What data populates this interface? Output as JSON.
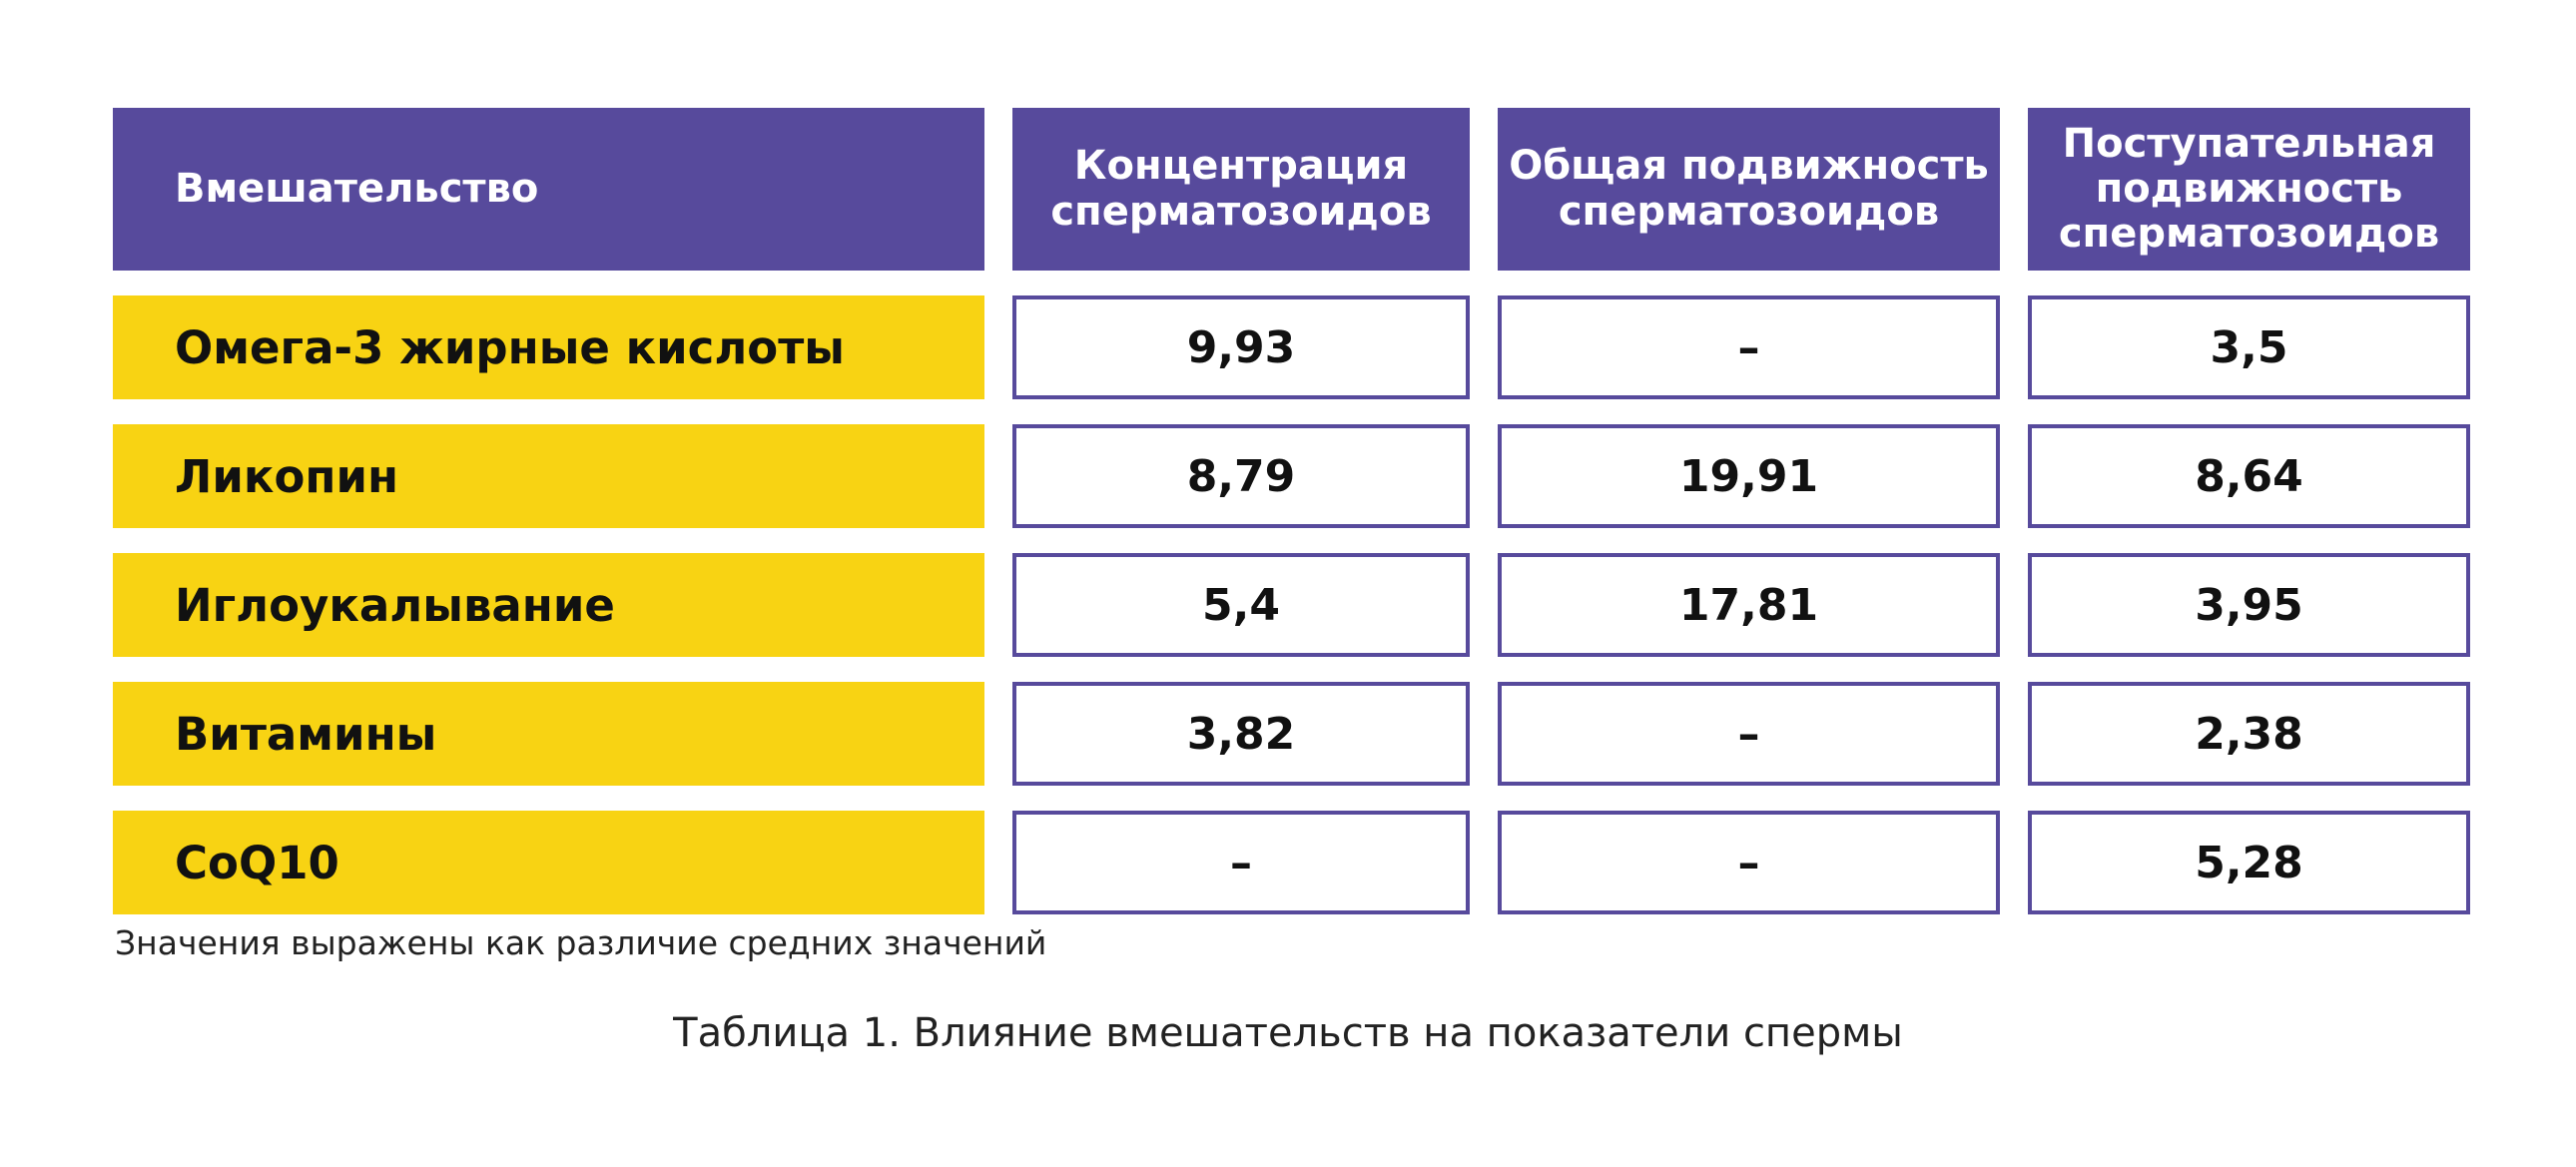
{
  "table": {
    "headers": [
      "Вмешательство",
      "Концентрация сперматозоидов",
      "Общая подвижность сперматозоидов",
      "Поступательная подвижность сперматозоидов"
    ],
    "rows": [
      {
        "label": "Омега-3 жирные кислоты",
        "values": [
          "9,93",
          "–",
          "3,5"
        ]
      },
      {
        "label": "Ликопин",
        "values": [
          "8,79",
          "19,91",
          "8,64"
        ]
      },
      {
        "label": "Иглоукалывание",
        "values": [
          "5,4",
          "17,81",
          "3,95"
        ]
      },
      {
        "label": "Витамины",
        "values": [
          "3,82",
          "–",
          "2,38"
        ]
      },
      {
        "label": "CoQ10",
        "values": [
          "–",
          "–",
          "5,28"
        ]
      }
    ]
  },
  "note": "Значения выражены как различие средних значений",
  "caption": "Таблица 1. Влияние вмешательств на показатели спермы",
  "colors": {
    "header_bg": "#574a9c",
    "label_bg": "#f8d313",
    "cell_border": "#574a9c"
  }
}
